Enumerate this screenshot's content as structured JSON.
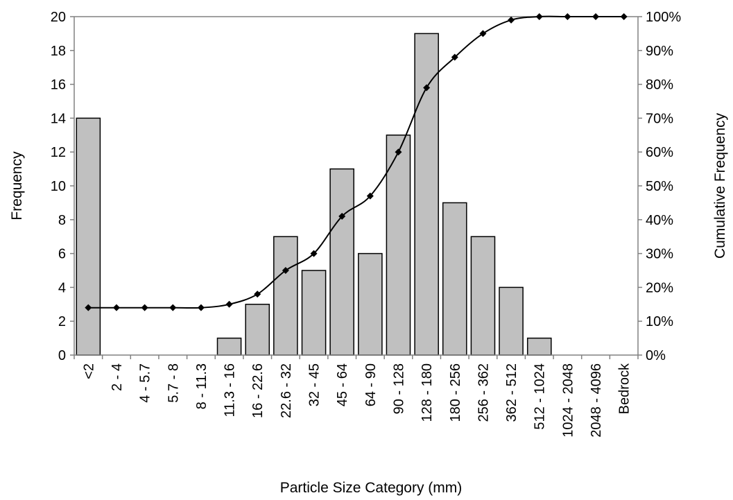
{
  "chart_data": {
    "type": "bar",
    "xlabel": "Particle Size Category (mm)",
    "ylabel": "Frequency",
    "y2label": "Cumulative Frequency",
    "categories": [
      "<2",
      "2 - 4",
      "4 - 5.7",
      "5.7 - 8",
      "8 - 11.3",
      "11.3 - 16",
      "16 - 22.6",
      "22.6 - 32",
      "32 - 45",
      "45 - 64",
      "64 - 90",
      "90 - 128",
      "128 - 180",
      "180 - 256",
      "256 - 362",
      "362 - 512",
      "512 - 1024",
      "1024 - 2048",
      "2048 - 4096",
      "Bedrock"
    ],
    "series": [
      {
        "type": "bar",
        "axis": "left",
        "values": [
          14,
          0,
          0,
          0,
          0,
          1,
          3,
          7,
          5,
          11,
          6,
          13,
          19,
          9,
          7,
          4,
          1,
          0,
          0,
          0
        ]
      },
      {
        "type": "line",
        "axis": "right",
        "values": [
          0.14,
          0.14,
          0.14,
          0.14,
          0.14,
          0.15,
          0.18,
          0.25,
          0.3,
          0.41,
          0.47,
          0.6,
          0.79,
          0.88,
          0.95,
          0.99,
          1.0,
          1.0,
          1.0,
          1.0
        ]
      }
    ],
    "ylim": [
      0,
      20
    ],
    "yticks": [
      "0",
      "2",
      "4",
      "6",
      "8",
      "10",
      "12",
      "14",
      "16",
      "18",
      "20"
    ],
    "y2lim": [
      0,
      1
    ],
    "y2ticks": [
      "0%",
      "10%",
      "20%",
      "30%",
      "40%",
      "50%",
      "60%",
      "70%",
      "80%",
      "90%",
      "100%"
    ],
    "grid": false,
    "legend": "none",
    "colors": {
      "bar_fill": "#c0c0c0",
      "bar_stroke": "#000000",
      "line": "#000000",
      "axis": "#808080"
    }
  }
}
